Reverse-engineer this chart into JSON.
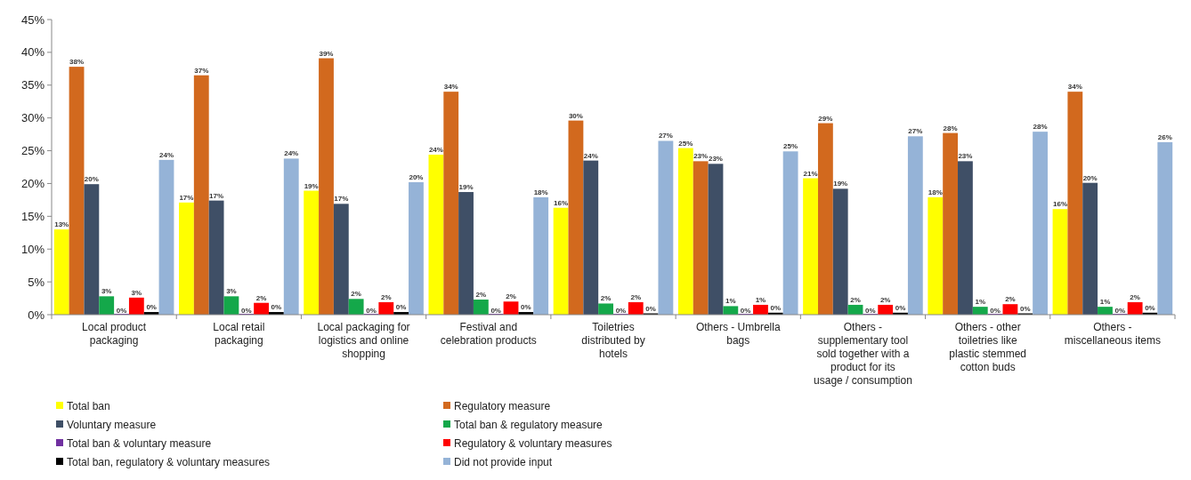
{
  "chart_data": {
    "type": "bar",
    "categories": [
      "Local product packaging",
      "Local retail packaging",
      "Local packaging for logistics and online shopping",
      "Festival and celebration products",
      "Toiletries distributed by hotels",
      "Others - Umbrella bags",
      "Others - supplementary tool sold together with a product for its usage / consumption",
      "Others - other toiletries like plastic stemmed cotton buds",
      "Others - miscellaneous items"
    ],
    "series": [
      {
        "name": "Total ban",
        "color": "#ffff00",
        "values": [
          13,
          17.1,
          18.9,
          24.4,
          16.3,
          25.4,
          20.8,
          17.9,
          16.1
        ],
        "value_labels": [
          "13%",
          "17%",
          "19%",
          "24%",
          "16%",
          "25%",
          "21%",
          "18%",
          "16%"
        ]
      },
      {
        "name": "Regulatory measure",
        "color": "#d2691e",
        "values": [
          37.8,
          36.5,
          39.1,
          34,
          29.6,
          23.4,
          29.2,
          27.7,
          34
        ],
        "value_labels": [
          "38%",
          "37%",
          "39%",
          "34%",
          "30%",
          "23%",
          "29%",
          "28%",
          "34%"
        ]
      },
      {
        "name": "Voluntary measure",
        "color": "#3f4f66",
        "values": [
          19.9,
          17.4,
          16.9,
          18.7,
          23.5,
          23,
          19.2,
          23.4,
          20.1
        ],
        "value_labels": [
          "20%",
          "17%",
          "17%",
          "19%",
          "24%",
          "23%",
          "19%",
          "23%",
          "20%"
        ]
      },
      {
        "name": "Total ban & regulatory measure",
        "color": "#14a84a",
        "values": [
          2.8,
          2.8,
          2.4,
          2.3,
          1.7,
          1.3,
          1.5,
          1.2,
          1.2
        ],
        "value_labels": [
          "3%",
          "3%",
          "2%",
          "2%",
          "2%",
          "1%",
          "2%",
          "1%",
          "1%"
        ]
      },
      {
        "name": "Total ban & voluntary measure",
        "color": "#7030a0",
        "values": [
          0,
          0,
          0,
          0,
          0,
          0,
          0,
          0,
          0
        ],
        "value_labels": [
          "0%",
          "0%",
          "0%",
          "0%",
          "0%",
          "0%",
          "0%",
          "0%",
          "0%"
        ]
      },
      {
        "name": "Regulatory & voluntary measures",
        "color": "#ff0000",
        "values": [
          2.6,
          1.8,
          1.9,
          2,
          1.9,
          1.5,
          1.5,
          1.6,
          1.9
        ],
        "value_labels": [
          "3%",
          "2%",
          "2%",
          "2%",
          "2%",
          "1%",
          "2%",
          "2%",
          "2%"
        ]
      },
      {
        "name": "Total ban, regulatory & voluntary measures",
        "color": "#000000",
        "values": [
          0.4,
          0.4,
          0.4,
          0.4,
          0.2,
          0.3,
          0.3,
          0.2,
          0.3
        ],
        "value_labels": [
          "0%",
          "0%",
          "0%",
          "0%",
          "0%",
          "0%",
          "0%",
          "0%",
          "0%"
        ]
      },
      {
        "name": "Did not provide input",
        "color": "#95b3d7",
        "values": [
          23.6,
          23.8,
          20.2,
          17.9,
          26.5,
          24.9,
          27.2,
          27.9,
          26.3
        ],
        "value_labels": [
          "24%",
          "24%",
          "20%",
          "18%",
          "27%",
          "25%",
          "27%",
          "28%",
          "26%"
        ]
      }
    ],
    "ylim": [
      0,
      45
    ],
    "yticks": [
      {
        "value": 0,
        "label": "0%"
      },
      {
        "value": 5,
        "label": "5%"
      },
      {
        "value": 10,
        "label": "10%"
      },
      {
        "value": 15,
        "label": "15%"
      },
      {
        "value": 20,
        "label": "20%"
      },
      {
        "value": 25,
        "label": "25%"
      },
      {
        "value": 30,
        "label": "30%"
      },
      {
        "value": 35,
        "label": "35%"
      },
      {
        "value": 40,
        "label": "40%"
      },
      {
        "value": 45,
        "label": "45%"
      }
    ],
    "legend": "bottom left"
  }
}
